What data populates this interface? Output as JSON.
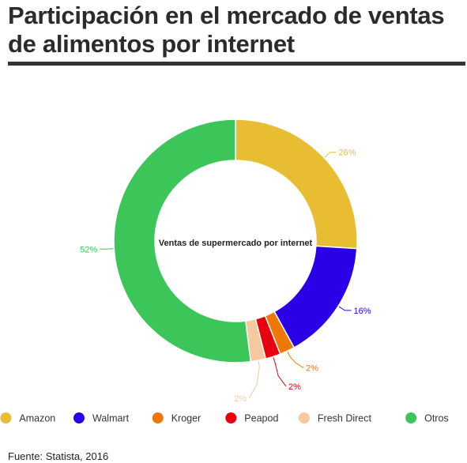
{
  "title": "Participación en el mercado de ventas de alimentos por internet",
  "source": "Fuente: Statista, 2016",
  "chart_data": {
    "type": "pie",
    "variant": "donut",
    "center_label": "Ventas de supermercado por internet",
    "legend_position": "bottom",
    "slices": [
      {
        "label": "Amazon",
        "value": 26,
        "value_label": "26%",
        "color": "#E8BD32"
      },
      {
        "label": "Walmart",
        "value": 16,
        "value_label": "16%",
        "color": "#2A00E6"
      },
      {
        "label": "Kroger",
        "value": 2,
        "value_label": "2%",
        "color": "#EE7708"
      },
      {
        "label": "Peapod",
        "value": 2,
        "value_label": "2%",
        "color": "#E8000E"
      },
      {
        "label": "Fresh Direct",
        "value": 2,
        "value_label": "2%",
        "color": "#F5C89E"
      },
      {
        "label": "Otros",
        "value": 52,
        "value_label": "52%",
        "color": "#3CC659"
      }
    ]
  }
}
